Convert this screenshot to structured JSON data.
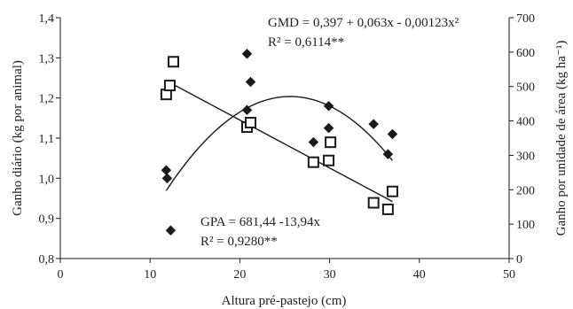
{
  "chart_data": {
    "type": "scatter",
    "xlabel": "Altura pré-pastejo (cm)",
    "ylabel_left": "Ganho diário (kg por animal)",
    "ylabel_right": "Ganho por unidade de área (kg ha⁻¹)",
    "xlim": [
      0,
      50
    ],
    "ylim_left": [
      0.8,
      1.4
    ],
    "ylim_right": [
      0,
      700
    ],
    "x_ticks": [
      "0",
      "10",
      "20",
      "30",
      "40",
      "50"
    ],
    "y_left_ticks": [
      "0,8",
      "0,9",
      "1,0",
      "1,1",
      "1,2",
      "1,3",
      "1,4"
    ],
    "y_right_ticks": [
      "0",
      "100",
      "200",
      "300",
      "400",
      "500",
      "600",
      "700"
    ],
    "grid": false,
    "series": [
      {
        "marker": "diamond",
        "axis": "left",
        "color": "#1a1a1a",
        "points": [
          {
            "x": 11.8,
            "y": 1.02
          },
          {
            "x": 11.9,
            "y": 1.0
          },
          {
            "x": 12.3,
            "y": 0.87
          },
          {
            "x": 20.8,
            "y": 1.31
          },
          {
            "x": 20.8,
            "y": 1.17
          },
          {
            "x": 21.2,
            "y": 1.24
          },
          {
            "x": 28.2,
            "y": 1.09
          },
          {
            "x": 29.9,
            "y": 1.18
          },
          {
            "x": 29.9,
            "y": 1.125
          },
          {
            "x": 34.9,
            "y": 1.135
          },
          {
            "x": 36.5,
            "y": 1.06
          },
          {
            "x": 37.0,
            "y": 1.11
          }
        ]
      },
      {
        "marker": "square",
        "axis": "right",
        "color": "#1a1a1a",
        "points": [
          {
            "x": 11.8,
            "y": 477
          },
          {
            "x": 12.2,
            "y": 503
          },
          {
            "x": 12.6,
            "y": 572
          },
          {
            "x": 20.8,
            "y": 382
          },
          {
            "x": 21.2,
            "y": 395
          },
          {
            "x": 28.2,
            "y": 280
          },
          {
            "x": 29.9,
            "y": 285
          },
          {
            "x": 30.1,
            "y": 338
          },
          {
            "x": 34.9,
            "y": 162
          },
          {
            "x": 36.5,
            "y": 143
          },
          {
            "x": 37.0,
            "y": 195
          }
        ]
      }
    ],
    "curves": [
      {
        "axis": "left",
        "type": "quadratic",
        "coefficients": [
          0.397,
          0.063,
          -0.00123
        ],
        "x_range": [
          11.8,
          37.0
        ]
      },
      {
        "axis": "right",
        "type": "linear",
        "coefficients": [
          681.44,
          -13.94
        ],
        "x_range": [
          11.8,
          37.0
        ]
      }
    ],
    "annotations": {
      "gmd_equation": "GMD = 0,397 + 0,063x - 0,00123x²",
      "gmd_r2": "R² = 0,6114**",
      "gpa_equation": "GPA = 681,44 -13,94x",
      "gpa_r2": "R² = 0,9280**"
    }
  }
}
